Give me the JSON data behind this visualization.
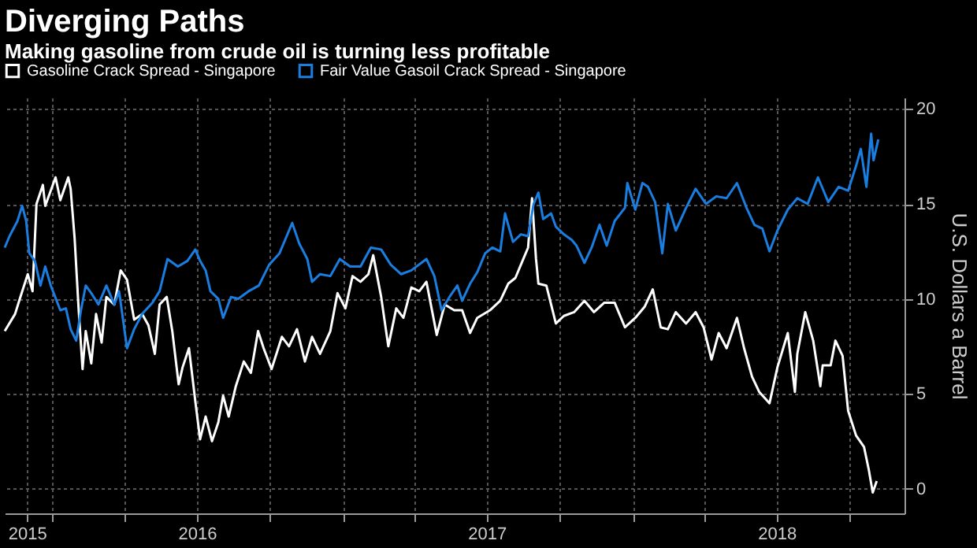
{
  "chart_data": {
    "type": "line",
    "title": "Diverging Paths",
    "subtitle": "Making gasoline from crude oil is turning less profitable",
    "ylabel": "U.S. Dollars a Barrel",
    "xlim": [
      "2015-11-02",
      "2018-12-09"
    ],
    "ylim": [
      -1.3,
      20.6
    ],
    "xticks": [
      {
        "value": "2015-11-30",
        "label": "2015"
      },
      {
        "value": "2016-01-01",
        "label": null
      },
      {
        "value": "2016-04-01",
        "label": null
      },
      {
        "value": "2016-07-01",
        "label": "2016"
      },
      {
        "value": "2016-10-01",
        "label": null
      },
      {
        "value": "2017-01-01",
        "label": null
      },
      {
        "value": "2017-04-01",
        "label": null
      },
      {
        "value": "2017-07-01",
        "label": "2017"
      },
      {
        "value": "2017-10-01",
        "label": null
      },
      {
        "value": "2018-01-01",
        "label": null
      },
      {
        "value": "2018-04-01",
        "label": null
      },
      {
        "value": "2018-07-01",
        "label": "2018"
      },
      {
        "value": "2018-10-01",
        "label": null
      }
    ],
    "yticks": [
      0,
      5,
      10,
      15,
      20
    ],
    "grid": true,
    "legend": "top left",
    "line_style": "solid",
    "marker": "none",
    "series": [
      {
        "name": "Gasoline Crack Spread - Singapore",
        "color": "#ffffff",
        "x": [
          "2015-11-02",
          "2015-11-15",
          "2015-11-21",
          "2015-12-01",
          "2015-12-07",
          "2015-12-12",
          "2015-12-20",
          "2015-12-23",
          "2016-01-05",
          "2016-01-11",
          "2016-01-21",
          "2016-01-24",
          "2016-01-29",
          "2016-02-03",
          "2016-02-08",
          "2016-02-12",
          "2016-02-19",
          "2016-02-25",
          "2016-03-03",
          "2016-03-09",
          "2016-03-19",
          "2016-03-27",
          "2016-04-04",
          "2016-04-13",
          "2016-04-23",
          "2016-05-01",
          "2016-05-09",
          "2016-05-15",
          "2016-05-24",
          "2016-05-31",
          "2016-06-08",
          "2016-06-13",
          "2016-06-21",
          "2016-06-29",
          "2016-07-05",
          "2016-07-12",
          "2016-07-20",
          "2016-07-28",
          "2016-08-03",
          "2016-08-10",
          "2016-08-19",
          "2016-08-29",
          "2016-09-07",
          "2016-09-16",
          "2016-09-23",
          "2016-10-03",
          "2016-10-16",
          "2016-10-25",
          "2016-11-04",
          "2016-11-14",
          "2016-11-23",
          "2016-12-03",
          "2016-12-16",
          "2016-12-25",
          "2017-01-04",
          "2017-01-13",
          "2017-01-23",
          "2017-02-02",
          "2017-02-08",
          "2017-02-18",
          "2017-02-27",
          "2017-03-09",
          "2017-03-18",
          "2017-03-28",
          "2017-04-07",
          "2017-04-16",
          "2017-04-29",
          "2017-05-09",
          "2017-05-21",
          "2017-05-31",
          "2017-06-10",
          "2017-06-19",
          "2017-07-05",
          "2017-07-18",
          "2017-07-28",
          "2017-08-06",
          "2017-08-16",
          "2017-08-22",
          "2017-08-27",
          "2017-09-01",
          "2017-09-04",
          "2017-09-14",
          "2017-09-26",
          "2017-10-06",
          "2017-10-19",
          "2017-11-01",
          "2017-11-13",
          "2017-11-26",
          "2017-12-09",
          "2017-12-22",
          "2018-01-04",
          "2018-01-16",
          "2018-01-26",
          "2018-02-05",
          "2018-02-14",
          "2018-02-24",
          "2018-03-09",
          "2018-03-21",
          "2018-03-31",
          "2018-04-10",
          "2018-04-19",
          "2018-04-29",
          "2018-05-12",
          "2018-05-21",
          "2018-05-31",
          "2018-06-09",
          "2018-06-22",
          "2018-07-02",
          "2018-07-15",
          "2018-07-24",
          "2018-07-27",
          "2018-08-06",
          "2018-08-16",
          "2018-08-25",
          "2018-08-28",
          "2018-09-07",
          "2018-09-13",
          "2018-09-22",
          "2018-09-29",
          "2018-10-09",
          "2018-10-19",
          "2018-10-25",
          "2018-10-30",
          "2018-11-04"
        ],
        "values": [
          8.3,
          9.2,
          10.0,
          11.3,
          10.4,
          15.0,
          16.0,
          14.9,
          16.4,
          15.2,
          16.4,
          15.8,
          13.2,
          9.5,
          6.3,
          8.3,
          6.6,
          9.2,
          7.7,
          10.1,
          9.7,
          11.5,
          11.0,
          8.9,
          9.2,
          8.6,
          7.1,
          9.7,
          10.1,
          8.3,
          5.5,
          6.4,
          7.4,
          4.6,
          2.6,
          3.8,
          2.5,
          3.5,
          4.9,
          3.8,
          5.4,
          6.7,
          6.1,
          8.3,
          7.4,
          6.3,
          8.0,
          7.5,
          8.4,
          6.7,
          8.0,
          7.1,
          8.3,
          10.3,
          9.5,
          11.2,
          10.9,
          11.3,
          12.3,
          10.1,
          7.5,
          9.5,
          9.0,
          10.6,
          10.4,
          10.9,
          8.1,
          9.7,
          9.4,
          9.4,
          8.2,
          9.0,
          9.4,
          9.9,
          10.8,
          11.1,
          12.1,
          12.7,
          15.3,
          12.1,
          10.8,
          10.7,
          8.7,
          9.1,
          9.3,
          9.9,
          9.3,
          9.8,
          9.8,
          8.5,
          9.0,
          9.6,
          10.5,
          8.5,
          8.4,
          9.3,
          8.7,
          9.3,
          8.5,
          6.8,
          8.2,
          7.4,
          9.0,
          7.4,
          5.9,
          5.1,
          4.5,
          6.4,
          8.2,
          5.1,
          7.1,
          9.3,
          7.8,
          5.4,
          6.5,
          6.5,
          7.8,
          7.0,
          4.1,
          2.8,
          2.2,
          1.0,
          -0.2,
          0.4
        ]
      },
      {
        "name": "Fair Value Gasoil Crack Spread - Singapore",
        "color": "#1a7ee0",
        "x": [
          "2015-11-02",
          "2015-11-08",
          "2015-11-18",
          "2015-11-24",
          "2015-11-29",
          "2015-12-03",
          "2015-12-10",
          "2015-12-17",
          "2015-12-23",
          "2015-12-30",
          "2016-01-11",
          "2016-01-18",
          "2016-01-24",
          "2016-01-31",
          "2016-02-06",
          "2016-02-12",
          "2016-02-19",
          "2016-02-28",
          "2016-03-09",
          "2016-03-19",
          "2016-03-25",
          "2016-04-04",
          "2016-04-13",
          "2016-04-23",
          "2016-05-06",
          "2016-05-15",
          "2016-05-25",
          "2016-06-07",
          "2016-06-19",
          "2016-06-29",
          "2016-07-05",
          "2016-07-12",
          "2016-07-18",
          "2016-07-28",
          "2016-08-03",
          "2016-08-13",
          "2016-08-22",
          "2016-09-04",
          "2016-09-17",
          "2016-09-30",
          "2016-10-13",
          "2016-10-22",
          "2016-10-29",
          "2016-11-07",
          "2016-11-17",
          "2016-11-23",
          "2016-12-03",
          "2016-12-16",
          "2016-12-28",
          "2017-01-10",
          "2017-01-23",
          "2017-02-05",
          "2017-02-18",
          "2017-03-02",
          "2017-03-15",
          "2017-03-28",
          "2017-04-16",
          "2017-04-26",
          "2017-05-05",
          "2017-05-15",
          "2017-05-25",
          "2017-05-31",
          "2017-06-10",
          "2017-06-19",
          "2017-06-29",
          "2017-07-08",
          "2017-07-18",
          "2017-07-24",
          "2017-08-03",
          "2017-08-13",
          "2017-08-22",
          "2017-08-29",
          "2017-09-04",
          "2017-09-10",
          "2017-09-20",
          "2017-09-26",
          "2017-10-06",
          "2017-10-16",
          "2017-10-22",
          "2017-11-01",
          "2017-11-10",
          "2017-11-20",
          "2017-11-29",
          "2017-12-09",
          "2017-12-22",
          "2017-12-25",
          "2018-01-04",
          "2018-01-13",
          "2018-01-20",
          "2018-01-29",
          "2018-02-07",
          "2018-02-14",
          "2018-02-24",
          "2018-03-09",
          "2018-03-21",
          "2018-04-03",
          "2018-04-16",
          "2018-04-29",
          "2018-05-12",
          "2018-05-24",
          "2018-06-03",
          "2018-06-13",
          "2018-06-22",
          "2018-07-02",
          "2018-07-15",
          "2018-07-27",
          "2018-08-09",
          "2018-08-22",
          "2018-09-04",
          "2018-09-17",
          "2018-09-29",
          "2018-10-09",
          "2018-10-15",
          "2018-10-22",
          "2018-10-28",
          "2018-10-31",
          "2018-11-06"
        ],
        "values": [
          12.7,
          13.3,
          14.1,
          14.9,
          14.1,
          12.4,
          12.0,
          10.7,
          11.7,
          10.7,
          9.4,
          9.5,
          8.4,
          7.8,
          9.4,
          10.7,
          10.3,
          9.7,
          10.7,
          9.7,
          10.4,
          7.4,
          8.4,
          9.2,
          9.8,
          10.4,
          12.1,
          11.7,
          12.0,
          12.6,
          12.0,
          11.5,
          10.4,
          10.0,
          9.0,
          10.1,
          10.0,
          10.4,
          10.7,
          11.8,
          12.4,
          13.3,
          14.0,
          12.9,
          12.1,
          10.9,
          11.3,
          11.2,
          12.1,
          11.7,
          11.7,
          12.7,
          12.6,
          11.8,
          11.3,
          11.5,
          12.1,
          11.2,
          9.4,
          10.1,
          10.7,
          9.9,
          10.8,
          11.4,
          12.4,
          12.7,
          12.5,
          14.5,
          13.0,
          13.4,
          13.3,
          15.0,
          15.6,
          14.2,
          14.5,
          13.8,
          13.4,
          13.1,
          12.8,
          11.9,
          12.7,
          13.9,
          12.8,
          14.1,
          14.8,
          16.1,
          14.7,
          16.1,
          15.9,
          15.1,
          12.4,
          15.0,
          13.6,
          14.8,
          15.8,
          15.0,
          15.4,
          15.3,
          16.1,
          14.8,
          13.9,
          13.7,
          12.5,
          13.6,
          14.7,
          15.3,
          15.0,
          16.4,
          15.1,
          15.9,
          15.7,
          17.0,
          17.9,
          15.9,
          18.7,
          17.3,
          18.4
        ]
      }
    ]
  }
}
